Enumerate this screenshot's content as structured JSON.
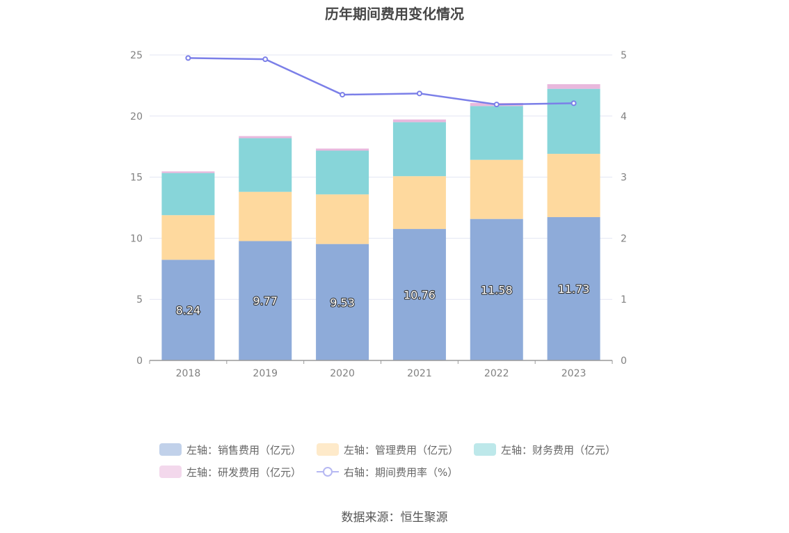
{
  "title": "历年期间费用变化情况",
  "source": "数据来源：恒生聚源",
  "chart_data": {
    "type": "bar",
    "stacked": true,
    "categories": [
      "2018",
      "2019",
      "2020",
      "2021",
      "2022",
      "2023"
    ],
    "series": [
      {
        "name": "左轴：销售费用（亿元）",
        "axis": "left",
        "color": "#8eabd9",
        "values": [
          8.24,
          9.77,
          9.53,
          10.76,
          11.58,
          11.73
        ],
        "show_labels": true
      },
      {
        "name": "左轴：管理费用（亿元）",
        "axis": "left",
        "color": "#fed99e",
        "values": [
          3.65,
          4.03,
          4.06,
          4.32,
          4.84,
          5.18
        ]
      },
      {
        "name": "左轴：财务费用（亿元）",
        "axis": "left",
        "color": "#87d5d9",
        "values": [
          3.45,
          4.39,
          3.58,
          4.42,
          4.4,
          5.32
        ]
      },
      {
        "name": "左轴：研发费用（亿元）",
        "axis": "left",
        "color": "#e9b8dd",
        "values": [
          0.13,
          0.17,
          0.17,
          0.22,
          0.25,
          0.38
        ]
      }
    ],
    "line_series": {
      "name": "右轴：期间费用率（%）",
      "axis": "right",
      "color": "#7b7fe8",
      "values": [
        4.95,
        4.93,
        4.35,
        4.37,
        4.19,
        4.21
      ]
    },
    "y_left": {
      "min": 0,
      "max": 25,
      "ticks": [
        "0",
        "5",
        "10",
        "15",
        "20",
        "25"
      ]
    },
    "y_right": {
      "min": 0,
      "max": 5,
      "ticks": [
        "0",
        "1",
        "2",
        "3",
        "4",
        "5"
      ]
    },
    "grid": true,
    "legend_position": "bottom"
  }
}
